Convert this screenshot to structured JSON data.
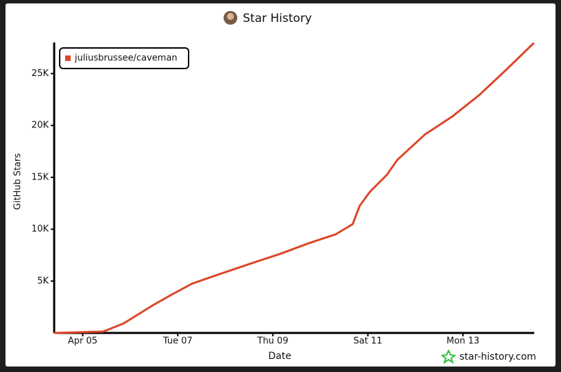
{
  "chart_data": {
    "type": "line",
    "title": "Star History",
    "x_label": "Date",
    "y_label": "GitHub Stars",
    "watermark": "star-history.com",
    "series": [
      {
        "name": "juliusbrussee/caveman",
        "color": "#dd4528",
        "x": [
          4.41,
          5.43,
          5.86,
          6.44,
          6.87,
          7.3,
          7.88,
          8.6,
          9.17,
          9.75,
          10.32,
          10.68,
          10.83,
          11.04,
          11.4,
          11.62,
          12.2,
          12.77,
          13.35,
          13.93,
          14.48
        ],
        "values": [
          0,
          130,
          920,
          2570,
          3690,
          4750,
          5670,
          6790,
          7650,
          8640,
          9500,
          10490,
          12270,
          13590,
          15240,
          16690,
          19130,
          20850,
          22960,
          25460,
          27900
        ]
      }
    ],
    "xlim": [
      4.4,
      14.5
    ],
    "xticks": [
      {
        "value": 5,
        "label": "Apr 05"
      },
      {
        "value": 7,
        "label": "Tue 07"
      },
      {
        "value": 9,
        "label": "Thu 09"
      },
      {
        "value": 11,
        "label": "Sat 11"
      },
      {
        "value": 13,
        "label": "Mon 13"
      }
    ],
    "ylim": [
      0,
      28000
    ],
    "yticks": [
      {
        "value": 5000,
        "label": "5K"
      },
      {
        "value": 10000,
        "label": "10K"
      },
      {
        "value": 15000,
        "label": "15K"
      },
      {
        "value": 20000,
        "label": "20K"
      },
      {
        "value": 25000,
        "label": "25K"
      }
    ],
    "legend": "top-left",
    "grid": false
  }
}
